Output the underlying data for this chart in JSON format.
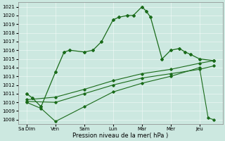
{
  "title": "Pression niveau de la mer( hPa )",
  "background_color": "#cce8e0",
  "line_color": "#1a6b1a",
  "x_labels": [
    "Sa Dim",
    "Ven",
    "Sam",
    "Lun",
    "Mar",
    "Mer",
    "Jeu"
  ],
  "ylim": [
    1007.5,
    1021.5
  ],
  "yticks": [
    1008,
    1009,
    1010,
    1011,
    1012,
    1013,
    1014,
    1015,
    1016,
    1017,
    1018,
    1019,
    1020,
    1021
  ],
  "x_high": [
    0,
    0.2,
    0.5,
    1.0,
    1.3,
    1.5,
    2.0,
    2.3,
    2.6,
    3.0,
    3.2,
    3.5,
    3.7,
    4.0,
    4.15,
    4.3,
    4.7,
    5.0,
    5.3,
    5.5,
    5.7,
    6.0,
    6.5
  ],
  "y_high": [
    1011,
    1010.5,
    1009.5,
    1013.5,
    1015.8,
    1016.0,
    1015.8,
    1016.0,
    1017.0,
    1019.5,
    1019.8,
    1020.0,
    1020.0,
    1021.0,
    1020.5,
    1019.8,
    1015.0,
    1016.0,
    1016.2,
    1015.8,
    1015.5,
    1015.0,
    1014.8
  ],
  "x_mean_high": [
    0,
    1,
    2,
    3,
    4,
    5,
    6,
    6.5
  ],
  "y_mean_high": [
    1010.3,
    1010.6,
    1011.5,
    1012.5,
    1013.3,
    1013.8,
    1014.5,
    1014.8
  ],
  "x_mean_low": [
    0,
    1,
    2,
    3,
    4,
    5,
    6,
    6.5
  ],
  "y_mean_low": [
    1010.1,
    1010.0,
    1011.0,
    1012.0,
    1012.8,
    1013.3,
    1013.8,
    1014.2
  ],
  "x_low": [
    0,
    0.5,
    1,
    2,
    3,
    4,
    5,
    6,
    6.3,
    6.5
  ],
  "y_low": [
    1010.0,
    1009.3,
    1007.8,
    1009.5,
    1011.2,
    1012.2,
    1013.0,
    1014.0,
    1008.2,
    1008.0
  ]
}
